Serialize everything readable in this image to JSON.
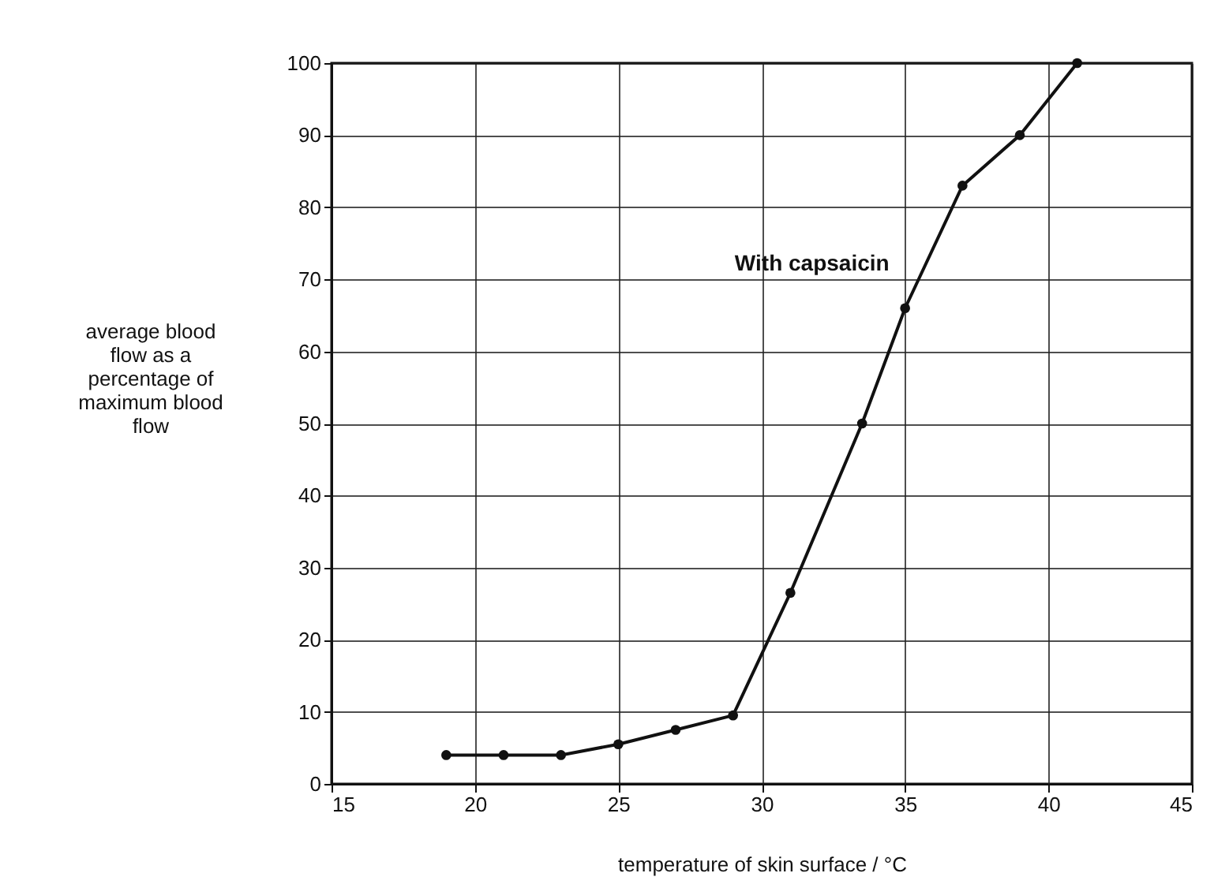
{
  "chart_data": {
    "type": "line",
    "xlabel": "temperature of skin surface / °C",
    "ylabel": "average blood flow as a percentage of maximum blood flow",
    "xlim": [
      15,
      45
    ],
    "xticks": [
      15,
      20,
      25,
      30,
      35,
      40,
      45
    ],
    "ylim": [
      0,
      100
    ],
    "yticks": [
      0,
      10,
      20,
      30,
      40,
      50,
      60,
      70,
      80,
      90,
      100
    ],
    "grid": true,
    "marker": "circle",
    "series": [
      {
        "name": "With capsaicin",
        "color": "#111111",
        "x": [
          19,
          21,
          23,
          25,
          27,
          29,
          31,
          33.5,
          35,
          37,
          39,
          41
        ],
        "values": [
          4,
          4,
          4,
          5.5,
          7.5,
          9.5,
          26.5,
          50,
          66,
          83,
          90,
          100
        ]
      }
    ]
  }
}
